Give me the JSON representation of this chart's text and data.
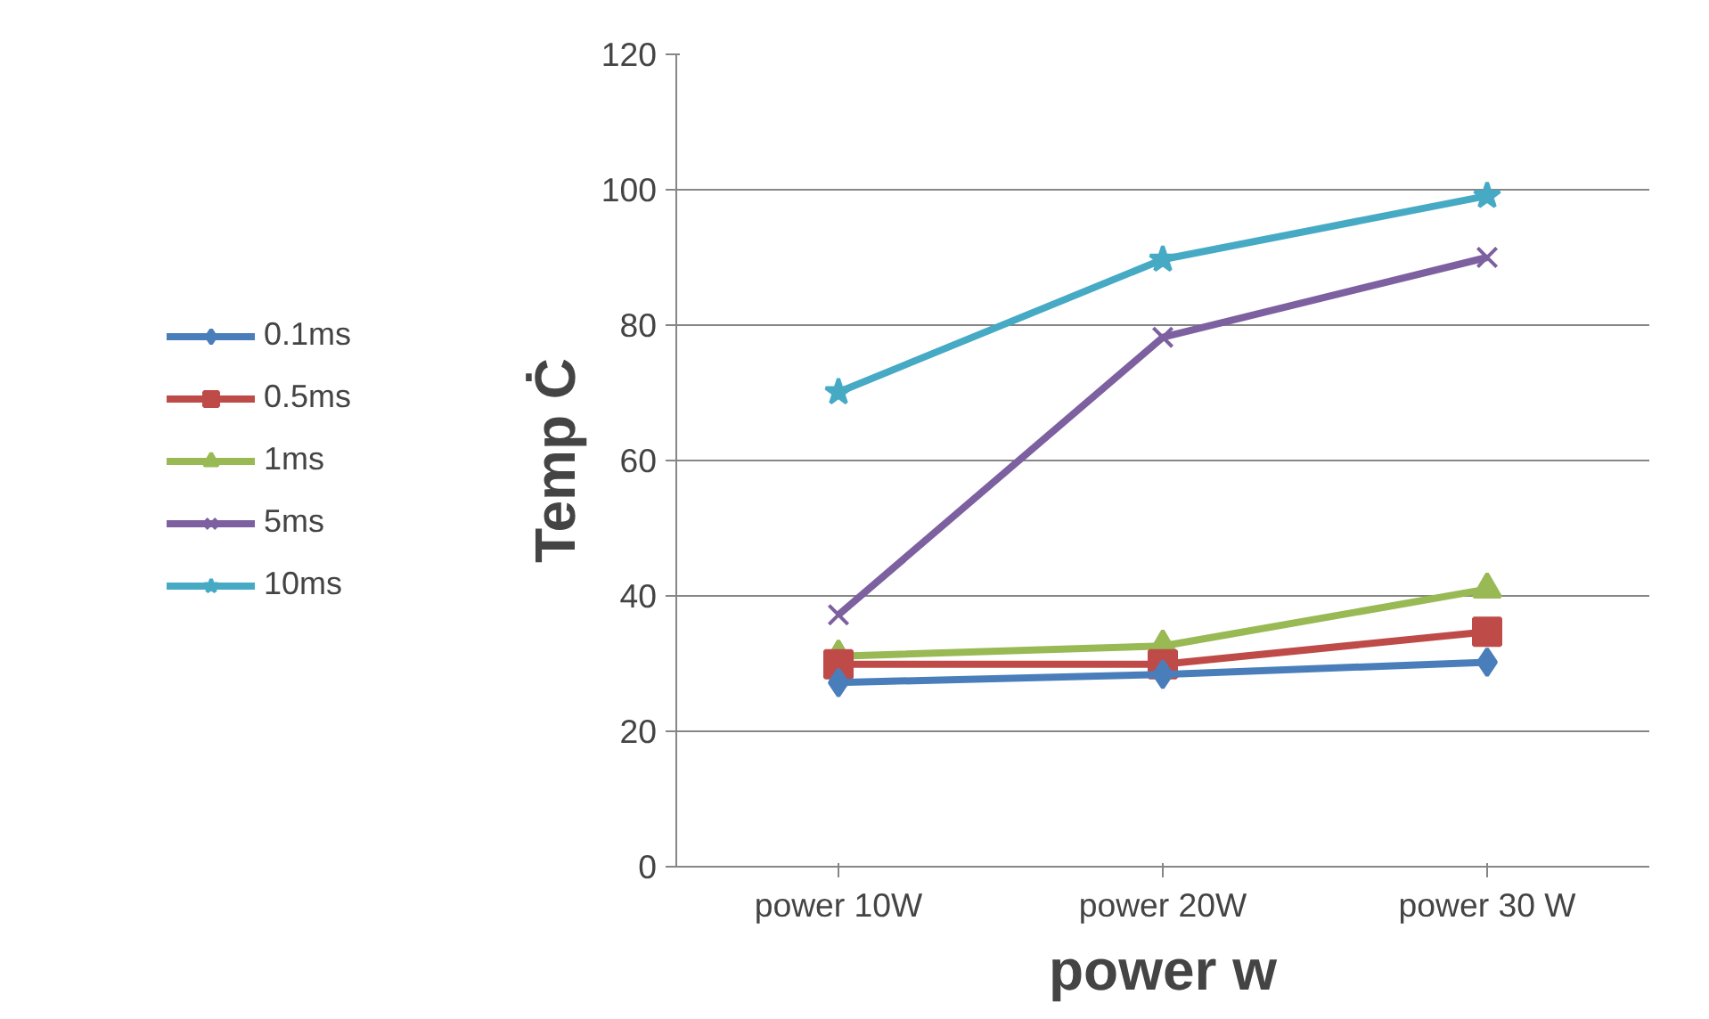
{
  "chart_data": {
    "type": "line",
    "xlabel": "power w",
    "ylabel": "Temp Ċ",
    "categories": [
      "power 10W",
      "power 20W",
      "power 30 W"
    ],
    "ylim": [
      0,
      120
    ],
    "yticks": [
      0,
      20,
      40,
      60,
      80,
      100,
      120
    ],
    "grid": "y",
    "legend": "left",
    "line_style": "solid",
    "series": [
      {
        "name": "0.1ms",
        "color": "#4a7ebb",
        "marker": "diamond",
        "values": [
          27.2,
          28.4,
          30.2
        ]
      },
      {
        "name": "0.5ms",
        "color": "#be4b48",
        "marker": "square",
        "values": [
          29.9,
          29.9,
          34.7
        ]
      },
      {
        "name": "1ms",
        "color": "#98b954",
        "marker": "triangle",
        "values": [
          31.1,
          32.6,
          41
        ]
      },
      {
        "name": "5ms",
        "color": "#7d60a0",
        "marker": "cross",
        "values": [
          37.2,
          78.2,
          90
        ]
      },
      {
        "name": "10ms",
        "color": "#46aac5",
        "marker": "star",
        "values": [
          70.1,
          89.7,
          99.1
        ]
      }
    ]
  }
}
